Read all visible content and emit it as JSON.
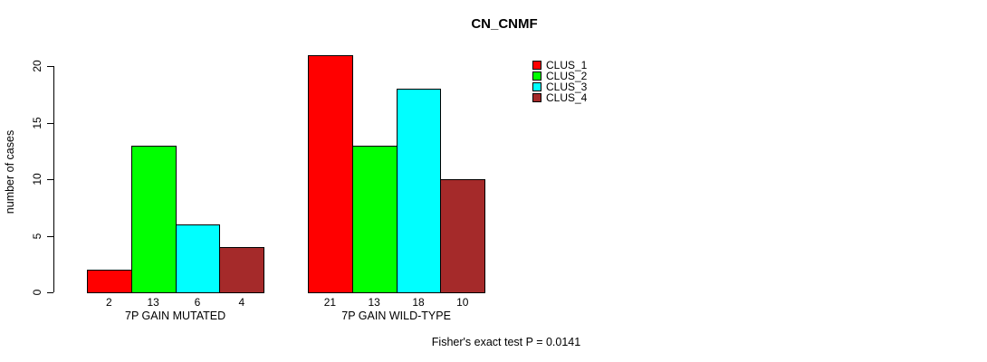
{
  "chart_data": {
    "type": "bar",
    "grouped": true,
    "title": "CN_CNMF",
    "xlabel": "",
    "ylabel": "number of cases",
    "categories": [
      "7P GAIN MUTATED",
      "7P GAIN WILD-TYPE"
    ],
    "series": [
      {
        "name": "CLUS_1",
        "color": "#ff0000",
        "values": [
          2,
          21
        ]
      },
      {
        "name": "CLUS_2",
        "color": "#00ff00",
        "values": [
          13,
          13
        ]
      },
      {
        "name": "CLUS_3",
        "color": "#00ffff",
        "values": [
          6,
          18
        ]
      },
      {
        "name": "CLUS_4",
        "color": "#a52a2a",
        "values": [
          4,
          10
        ]
      }
    ],
    "bar_value_labels": [
      [
        "2",
        "13",
        "6",
        "4"
      ],
      [
        "21",
        "13",
        "18",
        "10"
      ]
    ],
    "ylim": [
      0,
      20
    ],
    "yticks": [
      0,
      5,
      10,
      15,
      20
    ],
    "grid": false,
    "legend_position": "top-right",
    "legend_entries": [
      "CLUS_1",
      "CLUS_2",
      "CLUS_3",
      "CLUS_4"
    ],
    "annotation": "Fisher's exact test P = 0.0141",
    "colors": {
      "background": "#ffffff",
      "axis": "#000000",
      "text": "#000000"
    }
  }
}
